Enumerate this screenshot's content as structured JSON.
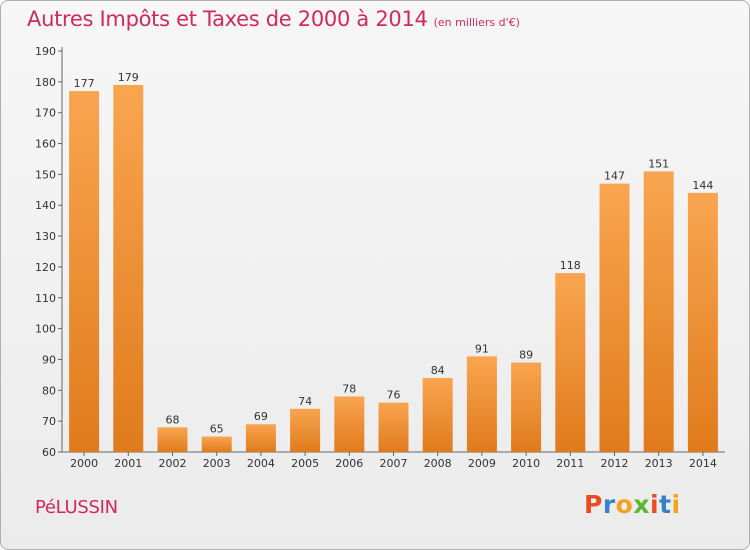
{
  "header": {
    "title": "Autres Impôts et Taxes de 2000 à 2014",
    "subtitle": "(en milliers d'€)"
  },
  "footer": {
    "commune": "PéLUSSIN",
    "brand": "Proxiti"
  },
  "colors": {
    "title": "#d02a5a",
    "bar_light": "#f9a550",
    "bar_dark": "#e07b1c",
    "brand_letters": [
      "#e84c22",
      "#3a7fc9",
      "#f2a31b",
      "#5ab62e",
      "#e84c22",
      "#3a7fc9",
      "#f2a31b"
    ]
  },
  "chart_data": {
    "type": "bar",
    "title": "Autres Impôts et Taxes de 2000 à 2014",
    "subtitle": "(en milliers d'€)",
    "categories": [
      "2000",
      "2001",
      "2002",
      "2003",
      "2004",
      "2005",
      "2006",
      "2007",
      "2008",
      "2009",
      "2010",
      "2011",
      "2012",
      "2013",
      "2014"
    ],
    "values": [
      177,
      179,
      68,
      65,
      69,
      74,
      78,
      76,
      84,
      91,
      89,
      118,
      147,
      151,
      144
    ],
    "ylim": [
      60,
      190
    ],
    "yticks": [
      60,
      70,
      80,
      90,
      100,
      110,
      120,
      130,
      140,
      150,
      160,
      170,
      180,
      190
    ],
    "grid": false,
    "legend": "none"
  }
}
